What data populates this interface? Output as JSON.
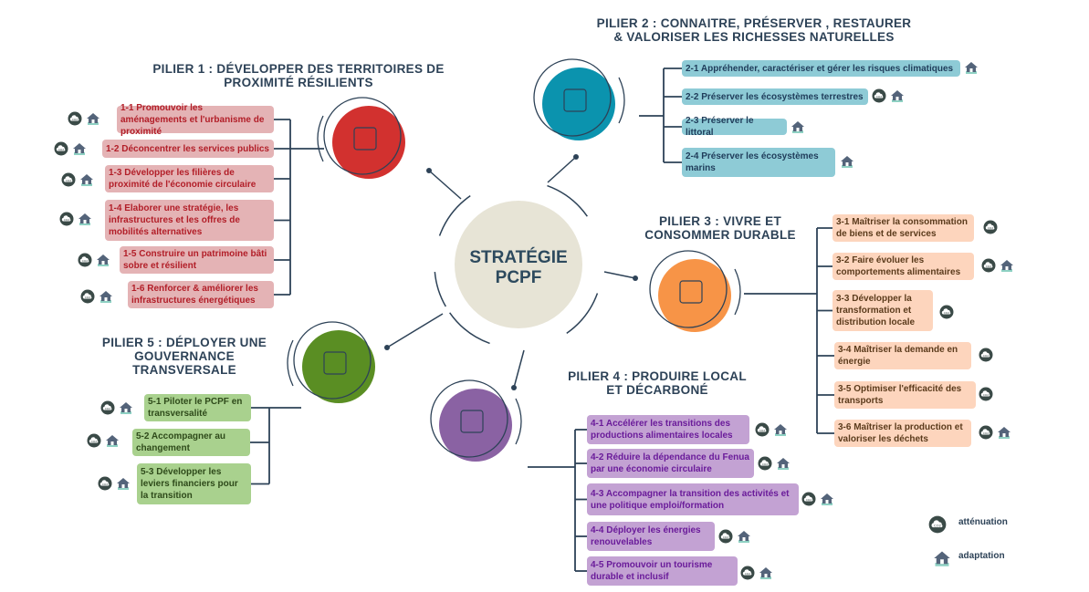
{
  "center": {
    "line1": "STRATÉGIE",
    "line2": "PCPF",
    "color": "#e7e4d6"
  },
  "pillars": [
    {
      "id": "p1",
      "title": [
        "PILIER 1 : DÉVELOPPER DES TERRITOIRES DE",
        "PROXIMITÉ RÉSILIENTS"
      ],
      "icon": "buildings-icon",
      "circle_color": "#d2312f",
      "box_color": "#e4b3b5",
      "text_color": "#b21e28",
      "items": [
        {
          "label": "1-1 Promouvoir les aménagements et l'urbanisme de proximité",
          "icons": [
            "co2",
            "house"
          ]
        },
        {
          "label": "1-2 Déconcentrer les services publics",
          "icons": [
            "co2",
            "house"
          ]
        },
        {
          "label": "1-3 Développer les filières de proximité de l'économie circulaire",
          "icons": [
            "co2",
            "house"
          ]
        },
        {
          "label": "1-4 Elaborer une stratégie, les infrastructures et les offres de mobilités alternatives",
          "icons": [
            "co2",
            "house"
          ]
        },
        {
          "label": "1-5 Construire un patrimoine bâti sobre et résilient",
          "icons": [
            "co2",
            "house"
          ]
        },
        {
          "label": "1-6 Renforcer & améliorer les infrastructures énergétiques",
          "icons": [
            "co2",
            "house"
          ]
        }
      ]
    },
    {
      "id": "p2",
      "title": [
        "PILIER 2 : CONNAITRE, PRÉSERVER , RESTAURER",
        "& VALORISER LES RICHESSES NATURELLES"
      ],
      "icon": "island-palm-icon",
      "circle_color": "#0b93ae",
      "box_color": "#8ecbd6",
      "text_color": "#1f3c5a",
      "items": [
        {
          "label": "2-1 Appréhender, caractériser et gérer les risques climatiques",
          "icons": [
            "house"
          ]
        },
        {
          "label": "2-2 Préserver les écosystèmes terrestres",
          "icons": [
            "co2",
            "house"
          ]
        },
        {
          "label": "2-3 Préserver le littoral",
          "icons": [
            "house"
          ]
        },
        {
          "label": "2-4 Préserver les écosystèmes marins",
          "icons": [
            "house"
          ]
        }
      ]
    },
    {
      "id": "p3",
      "title": [
        "PILIER 3 : VIVRE ET",
        "CONSOMMER DURABLE"
      ],
      "icon": "recycle-bag-icon",
      "circle_color": "#f79447",
      "box_color": "#fdd5bd",
      "text_color": "#5b3b1c",
      "items": [
        {
          "label": "3-1 Maîtriser la consommation de biens et de services",
          "icons": [
            "co2"
          ]
        },
        {
          "label": "3-2 Faire évoluer les comportements alimentaires",
          "icons": [
            "co2",
            "house"
          ]
        },
        {
          "label": "3-3 Développer la transformation et distribution locale",
          "icons": [
            "co2"
          ]
        },
        {
          "label": "3-4 Maîtriser la demande en énergie",
          "icons": [
            "co2"
          ]
        },
        {
          "label": "3-5 Optimiser l'efficacité des transports",
          "icons": [
            "co2"
          ]
        },
        {
          "label": "3-6 Maîtriser la production et valoriser les déchets",
          "icons": [
            "co2",
            "house"
          ]
        }
      ]
    },
    {
      "id": "p4",
      "title": [
        "PILIER 4 : PRODUIRE LOCAL",
        "ET DÉCARBONÉ"
      ],
      "icon": "globe-leaf-icon",
      "circle_color": "#8a62a3",
      "box_color": "#c3a2d3",
      "text_color": "#6a1b9a",
      "items": [
        {
          "label": "4-1 Accélérer les transitions des productions alimentaires locales",
          "icons": [
            "co2",
            "house"
          ]
        },
        {
          "label": "4-2 Réduire la dépendance du Fenua par une économie circulaire",
          "icons": [
            "co2",
            "house"
          ]
        },
        {
          "label": "4-3 Accompagner la transition des activités et une politique emploi/formation",
          "icons": [
            "co2",
            "house"
          ]
        },
        {
          "label": "4-4 Déployer les énergies renouvelables",
          "icons": [
            "co2",
            "house"
          ]
        },
        {
          "label": "4-5 Promouvoir un tourisme durable et inclusif",
          "icons": [
            "co2",
            "house"
          ]
        }
      ]
    },
    {
      "id": "p5",
      "title": [
        "PILIER 5 : DÉPLOYER UNE",
        "GOUVERNANCE",
        "TRANSVERSALE"
      ],
      "icon": "handshake-icon",
      "circle_color": "#5a8e23",
      "box_color": "#a9d18e",
      "text_color": "#2e4a1a",
      "items": [
        {
          "label": "5-1 Piloter le PCPF en transversalité",
          "icons": [
            "co2",
            "house"
          ]
        },
        {
          "label": "5-2 Accompagner au changement",
          "icons": [
            "co2",
            "house"
          ]
        },
        {
          "label": "5-3 Développer les leviers financiers pour la transition",
          "icons": [
            "co2",
            "house"
          ]
        }
      ]
    }
  ],
  "legend": {
    "co2_label": "atténuation",
    "house_label": "adaptation"
  },
  "line_color": "#2d4257"
}
